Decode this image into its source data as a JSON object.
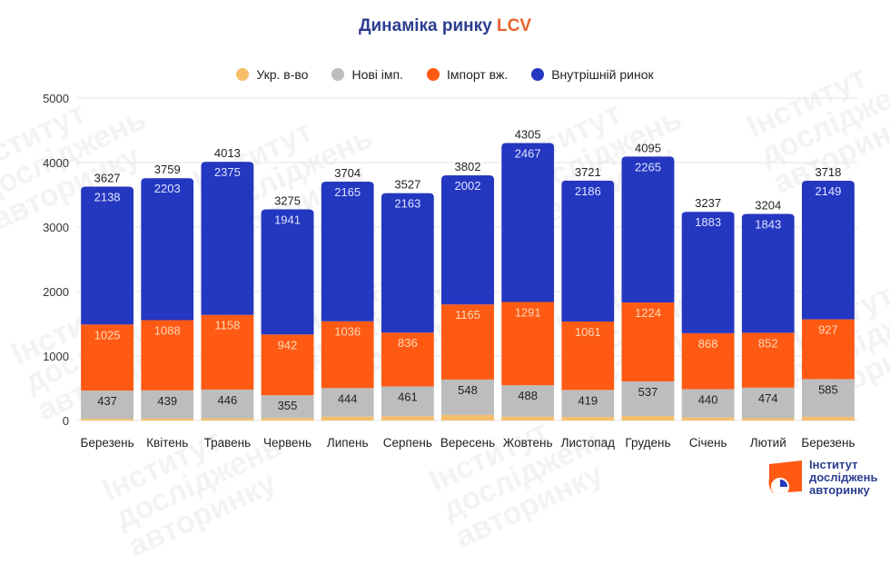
{
  "title": {
    "main": "Динаміка ринку",
    "accent": "LCV"
  },
  "colors": {
    "ukr": "#f5be6a",
    "new_imports": "#bdbdbd",
    "used_imports": "#ff5a14",
    "domestic": "#2437c0",
    "title": "#2b3d8f",
    "accent": "#e8622a"
  },
  "legend": [
    {
      "label": "Укр. в-во",
      "color": "#f5be6a"
    },
    {
      "label": "Нові імп.",
      "color": "#bdbdbd"
    },
    {
      "label": "Імпорт вж.",
      "color": "#ff5a14"
    },
    {
      "label": "Внутрішній ринок",
      "color": "#2437c0"
    }
  ],
  "watermark": [
    "Інститут",
    "досліджень",
    "авторинку"
  ],
  "logo": {
    "lines": [
      "Інститут",
      "досліджень",
      "авторинку"
    ]
  },
  "chart_data": {
    "type": "bar",
    "stacked": true,
    "title": "Динаміка ринку LCV",
    "xlabel": "",
    "ylabel": "",
    "ylim": [
      0,
      5000
    ],
    "yticks": [
      0,
      1000,
      2000,
      3000,
      4000,
      5000
    ],
    "grid": true,
    "legend_position": "top",
    "categories": [
      "Березень",
      "Квітень",
      "Травень",
      "Червень",
      "Липень",
      "Серпень",
      "Вересень",
      "Жовтень",
      "Листопад",
      "Грудень",
      "Січень",
      "Лютий",
      "Березень"
    ],
    "series": [
      {
        "name": "Укр. в-во",
        "color": "#f5be6a",
        "labeled": false,
        "values": [
          27,
          29,
          34,
          37,
          59,
          67,
          87,
          59,
          55,
          69,
          46,
          35,
          57
        ]
      },
      {
        "name": "Нові імп.",
        "color": "#bdbdbd",
        "labeled": true,
        "label_color": "#222222",
        "values": [
          437,
          439,
          446,
          355,
          444,
          461,
          548,
          488,
          419,
          537,
          440,
          474,
          585
        ]
      },
      {
        "name": "Імпорт вж.",
        "color": "#ff5a14",
        "labeled": true,
        "label_color": "#ffd9b8",
        "values": [
          1025,
          1088,
          1158,
          942,
          1036,
          836,
          1165,
          1291,
          1061,
          1224,
          868,
          852,
          927
        ]
      },
      {
        "name": "Внутрішній ринок",
        "color": "#2437c0",
        "labeled": true,
        "label_color": "#dfe4ff",
        "values": [
          2138,
          2203,
          2375,
          1941,
          2165,
          2163,
          2002,
          2467,
          2186,
          2265,
          1883,
          1843,
          2149
        ]
      }
    ],
    "totals": [
      3627,
      3759,
      4013,
      3275,
      3704,
      3527,
      3802,
      4305,
      3721,
      4095,
      3237,
      3204,
      3718
    ]
  }
}
